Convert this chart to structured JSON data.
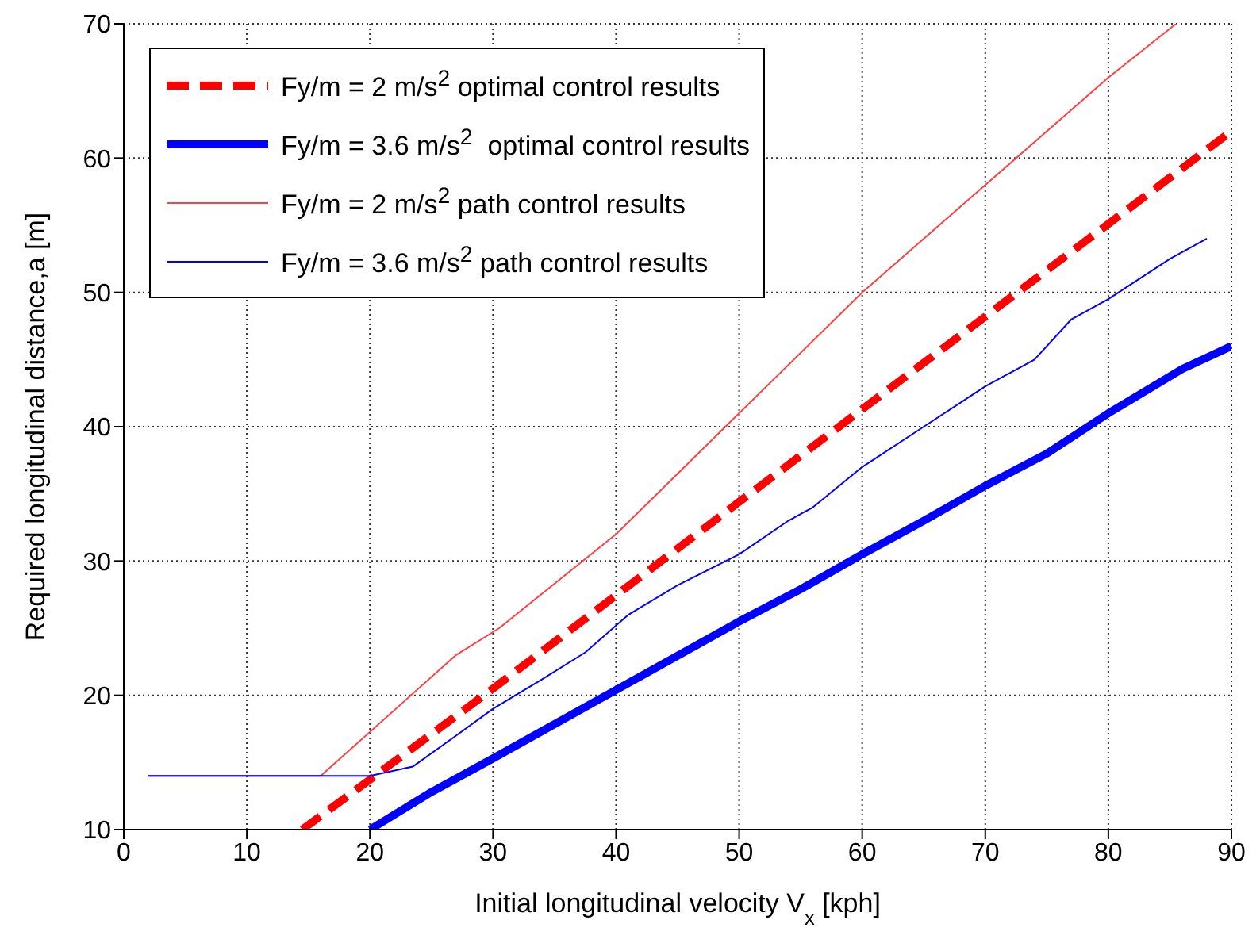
{
  "chart_data": {
    "type": "line",
    "xlabel": "Initial longitudinal velocity V$_{x}$ [kph]",
    "ylabel": "Required longitudinal distance,a [m]",
    "xlim": [
      0,
      90
    ],
    "ylim": [
      10,
      70
    ],
    "xticks": [
      0,
      10,
      20,
      30,
      40,
      50,
      60,
      70,
      80,
      90
    ],
    "yticks": [
      10,
      20,
      30,
      40,
      50,
      60,
      70
    ],
    "grid": true,
    "legend": "top left",
    "marker": "none",
    "series": [
      {
        "name": "Fy/m = 2 m/s$^{2}$ optimal control results",
        "color": "#ff0000",
        "line_style": "dashed",
        "x": [
          14.5,
          30,
          50,
          70,
          90
        ],
        "values": [
          10,
          20.5,
          34.4,
          48.2,
          62
        ]
      },
      {
        "name": "Fy/m = 3.6 m/s$^{2}$  optimal control results",
        "color": "#0000ff",
        "line_style": "solid",
        "x": [
          20,
          25,
          30,
          40,
          50,
          55,
          60,
          65,
          70,
          75,
          80,
          86,
          90
        ],
        "values": [
          10,
          12.8,
          15.3,
          20.4,
          25.5,
          27.9,
          30.5,
          33,
          35.6,
          38,
          41,
          44.3,
          46
        ]
      },
      {
        "name": "Fy/m = 2 m/s$^{2}$ path control results",
        "color": "#ff4040",
        "line_style": "solid",
        "x": [
          2,
          16,
          27,
          30.5,
          40,
          50,
          60,
          70,
          80,
          85.5
        ],
        "values": [
          14,
          14,
          23,
          25,
          32,
          41,
          50,
          58,
          66,
          70
        ]
      },
      {
        "name": "Fy/m = 3.6 m/s$^{2}$ path control results",
        "color": "#0000ff",
        "line_style": "solid",
        "x": [
          2,
          20,
          23.5,
          27,
          30,
          34,
          37.5,
          41,
          45,
          50,
          54,
          56,
          60,
          65,
          70,
          74,
          77,
          80,
          85,
          88
        ],
        "values": [
          14,
          14,
          14.7,
          17,
          19,
          21.2,
          23.2,
          26,
          28.2,
          30.5,
          33,
          34,
          37,
          40,
          43,
          45,
          48,
          49.5,
          52.5,
          54
        ]
      }
    ]
  }
}
